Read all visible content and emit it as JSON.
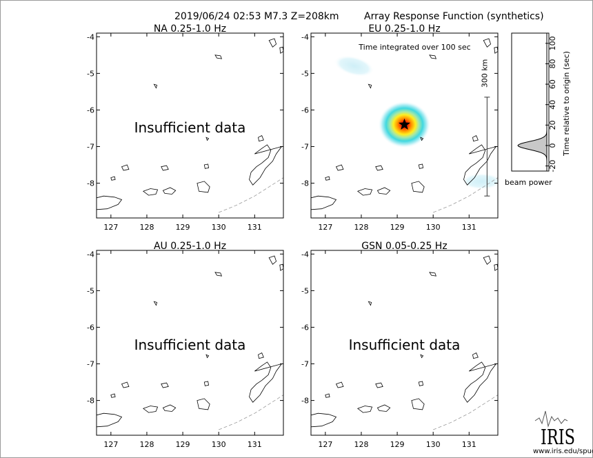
{
  "header": {
    "event": "2019/06/24 02:53  M7.3  Z=208km",
    "product": "Array Response Function (synthetics)"
  },
  "map": {
    "lon_range": [
      126.6,
      131.8
    ],
    "lat_range": [
      -8.95,
      -3.9
    ],
    "lon_ticks": [
      "127",
      "128",
      "129",
      "130",
      "131"
    ],
    "lat_ticks": [
      "-4",
      "-5",
      "-6",
      "-7",
      "-8"
    ]
  },
  "panels": [
    {
      "title": "NA  0.25-1.0 Hz",
      "status": "Insufficient data"
    },
    {
      "title": "EU  0.25-1.0 Hz",
      "status": "",
      "note": "Time integrated over 100 sec",
      "scale_label": "300 km"
    },
    {
      "title": "AU  0.25-1.0 Hz",
      "status": "Insufficient data"
    },
    {
      "title": "GSN  0.05-0.25 Hz",
      "status": "Insufficient data"
    }
  ],
  "beam_peak": {
    "lon": 129.2,
    "lat": -6.4
  },
  "beam_power": {
    "label": "beam power",
    "ylabel": "Time relative to origin (sec)",
    "yticks": [
      "100",
      "80",
      "60",
      "40",
      "20",
      "0",
      "-20"
    ],
    "tick_values": [
      100,
      80,
      60,
      40,
      20,
      0,
      -20
    ],
    "ylim": [
      -25,
      110
    ],
    "peak_time": 0
  },
  "logo": {
    "text": "IRIS",
    "url": "www.iris.edu/spud"
  },
  "colors": {
    "frame": "#000000",
    "coast": "#000000",
    "trench": "#9a9a9a",
    "star": "#000000"
  }
}
